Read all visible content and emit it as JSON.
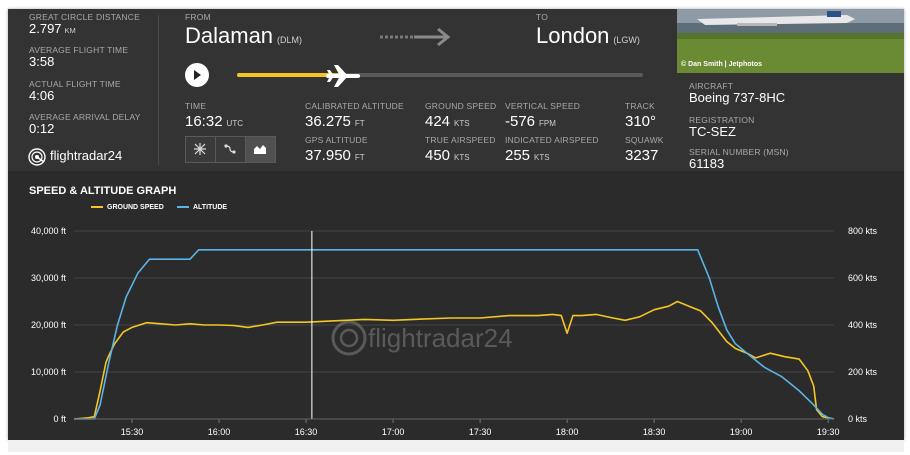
{
  "left_stats": [
    {
      "label": "GREAT CIRCLE DISTANCE",
      "value": "2.797",
      "unit": "KM"
    },
    {
      "label": "AVERAGE FLIGHT TIME",
      "value": "3:58",
      "unit": ""
    },
    {
      "label": "ACTUAL FLIGHT TIME",
      "value": "4:06",
      "unit": ""
    },
    {
      "label": "AVERAGE ARRIVAL DELAY",
      "value": "0:12",
      "unit": ""
    }
  ],
  "logo": {
    "text": "flightradar24"
  },
  "route": {
    "from_label": "FROM",
    "from_city": "Dalaman",
    "from_code": "(DLM)",
    "to_label": "TO",
    "to_city": "London",
    "to_code": "(LGW)"
  },
  "progress": {
    "fraction": 0.26
  },
  "details": [
    {
      "label": "TIME",
      "value": "16:32",
      "unit": "UTC"
    },
    {
      "label": "CALIBRATED ALTITUDE",
      "value": "36.275",
      "unit": "FT"
    },
    {
      "label": "GROUND SPEED",
      "value": "424",
      "unit": "KTS"
    },
    {
      "label": "VERTICAL SPEED",
      "value": "-576",
      "unit": "FPM"
    },
    {
      "label": "TRACK",
      "value": "310°",
      "unit": ""
    },
    {
      "label": "GPS ALTITUDE",
      "value": "37.950",
      "unit": "FT"
    },
    {
      "label": "TRUE AIRSPEED",
      "value": "450",
      "unit": "KTS"
    },
    {
      "label": "INDICATED AIRSPEED",
      "value": "255",
      "unit": "KTS"
    },
    {
      "label": "SQUAWK",
      "value": "3237",
      "unit": ""
    }
  ],
  "view_buttons": [
    {
      "icon": "map-view-icon",
      "active": false
    },
    {
      "icon": "route-view-icon",
      "active": false
    },
    {
      "icon": "graph-view-icon",
      "active": true
    }
  ],
  "photo": {
    "credit": "© Dan Smith | Jetphotos"
  },
  "aircraft": [
    {
      "label": "AIRCRAFT",
      "value": "Boeing 737-8HC"
    },
    {
      "label": "REGISTRATION",
      "value": "TC-SEZ"
    },
    {
      "label": "SERIAL NUMBER (MSN)",
      "value": "61183"
    }
  ],
  "colors": {
    "ground_speed": "#f5c623",
    "altitude": "#5ab4e5",
    "cursor": "#ffffff"
  },
  "chart_data": {
    "type": "line",
    "title": "SPEED & ALTITUDE GRAPH",
    "x_ticks": [
      "15:30",
      "16:00",
      "16:30",
      "17:00",
      "17:30",
      "18:00",
      "18:30",
      "19:00",
      "19:30"
    ],
    "x_range": [
      "15:10",
      "19:32"
    ],
    "y_left": {
      "range": [
        0,
        40000
      ],
      "ticks": [
        "0 ft",
        "10,000 ft",
        "20,000 ft",
        "30,000 ft",
        "40,000 ft"
      ]
    },
    "y_right": {
      "range": [
        0,
        800
      ],
      "ticks": [
        "0 kts",
        "200 kts",
        "400 kts",
        "600 kts",
        "800 kts"
      ]
    },
    "cursor_time": "16:32",
    "watermark": "flightradar24",
    "series": [
      {
        "name": "GROUND SPEED",
        "axis": "right",
        "points": [
          [
            "15:10",
            0
          ],
          [
            "15:15",
            5
          ],
          [
            "15:17",
            10
          ],
          [
            "15:19",
            120
          ],
          [
            "15:21",
            240
          ],
          [
            "15:22",
            270
          ],
          [
            "15:24",
            320
          ],
          [
            "15:27",
            370
          ],
          [
            "15:30",
            390
          ],
          [
            "15:35",
            410
          ],
          [
            "15:40",
            405
          ],
          [
            "15:45",
            400
          ],
          [
            "15:50",
            405
          ],
          [
            "15:55",
            400
          ],
          [
            "16:00",
            400
          ],
          [
            "16:05",
            398
          ],
          [
            "16:10",
            390
          ],
          [
            "16:15",
            400
          ],
          [
            "16:20",
            412
          ],
          [
            "16:30",
            412
          ],
          [
            "16:40",
            418
          ],
          [
            "16:50",
            424
          ],
          [
            "17:00",
            420
          ],
          [
            "17:10",
            425
          ],
          [
            "17:20",
            430
          ],
          [
            "17:30",
            430
          ],
          [
            "17:40",
            440
          ],
          [
            "17:50",
            440
          ],
          [
            "17:55",
            445
          ],
          [
            "17:58",
            440
          ],
          [
            "18:00",
            365
          ],
          [
            "18:02",
            440
          ],
          [
            "18:05",
            440
          ],
          [
            "18:10",
            445
          ],
          [
            "18:15",
            432
          ],
          [
            "18:20",
            420
          ],
          [
            "18:25",
            435
          ],
          [
            "18:30",
            465
          ],
          [
            "18:35",
            480
          ],
          [
            "18:38",
            500
          ],
          [
            "18:42",
            480
          ],
          [
            "18:46",
            460
          ],
          [
            "18:50",
            410
          ],
          [
            "18:55",
            330
          ],
          [
            "18:58",
            300
          ],
          [
            "19:02",
            280
          ],
          [
            "19:05",
            260
          ],
          [
            "19:10",
            280
          ],
          [
            "19:15",
            265
          ],
          [
            "19:20",
            255
          ],
          [
            "19:23",
            205
          ],
          [
            "19:25",
            140
          ],
          [
            "19:26",
            40
          ],
          [
            "19:28",
            10
          ],
          [
            "19:30",
            5
          ],
          [
            "19:32",
            0
          ]
        ]
      },
      {
        "name": "ALTITUDE",
        "axis": "left",
        "points": [
          [
            "15:10",
            0
          ],
          [
            "15:17",
            0
          ],
          [
            "15:19",
            3000
          ],
          [
            "15:22",
            12000
          ],
          [
            "15:25",
            20000
          ],
          [
            "15:28",
            26000
          ],
          [
            "15:32",
            31000
          ],
          [
            "15:36",
            34000
          ],
          [
            "15:40",
            34000
          ],
          [
            "15:50",
            34000
          ],
          [
            "15:53",
            36000
          ],
          [
            "16:00",
            36000
          ],
          [
            "17:00",
            36000
          ],
          [
            "18:00",
            36000
          ],
          [
            "18:40",
            36000
          ],
          [
            "18:45",
            36000
          ],
          [
            "18:49",
            30000
          ],
          [
            "18:52",
            24000
          ],
          [
            "18:55",
            19000
          ],
          [
            "18:58",
            16000
          ],
          [
            "19:02",
            14000
          ],
          [
            "19:08",
            11000
          ],
          [
            "19:14",
            9000
          ],
          [
            "19:20",
            6000
          ],
          [
            "19:25",
            3000
          ],
          [
            "19:28",
            1000
          ],
          [
            "19:30",
            300
          ],
          [
            "19:32",
            0
          ]
        ]
      }
    ]
  }
}
